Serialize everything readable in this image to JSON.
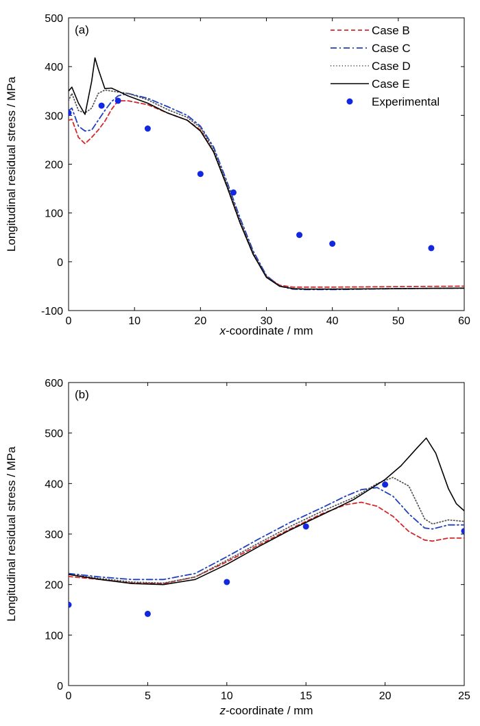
{
  "chart_data": [
    {
      "type": "line",
      "panel_label": "(a)",
      "xlabel_var": "x",
      "xlabel_rest": "-coordinate / mm",
      "ylabel": "Longitudinal residual stress / MPa",
      "xlim": [
        0,
        60
      ],
      "ylim": [
        -100,
        500
      ],
      "xticks": [
        0,
        10,
        20,
        30,
        40,
        50,
        60
      ],
      "yticks": [
        -100,
        0,
        100,
        200,
        300,
        400,
        500
      ],
      "legend": "top-right",
      "series": [
        {
          "name": "Case B",
          "style": "dashed",
          "color": "#d62728",
          "x": [
            0,
            0.5,
            1.5,
            2.5,
            3.5,
            4.5,
            5.5,
            6.5,
            7.5,
            9,
            12,
            15,
            18,
            20,
            22,
            24,
            26,
            28,
            30,
            32,
            34,
            36,
            40,
            50,
            60
          ],
          "y": [
            290,
            292,
            255,
            242,
            255,
            270,
            288,
            312,
            330,
            330,
            322,
            305,
            290,
            270,
            225,
            155,
            80,
            15,
            -30,
            -48,
            -52,
            -52,
            -52,
            -51,
            -50
          ]
        },
        {
          "name": "Case C",
          "style": "dashdot",
          "color": "#1f3fbf",
          "x": [
            0,
            0.5,
            1.5,
            2.5,
            3.5,
            4.5,
            5.5,
            6.5,
            7.5,
            9,
            12,
            15,
            18,
            20,
            22,
            24,
            26,
            28,
            30,
            32,
            34,
            36,
            40,
            50,
            60
          ],
          "y": [
            310,
            315,
            278,
            268,
            270,
            290,
            310,
            328,
            340,
            345,
            335,
            318,
            300,
            278,
            235,
            165,
            90,
            22,
            -28,
            -50,
            -56,
            -57,
            -57,
            -55,
            -54
          ]
        },
        {
          "name": "Case D",
          "style": "dotted",
          "color": "#555555",
          "x": [
            0,
            0.5,
            1.5,
            2.5,
            3.5,
            4.5,
            5.5,
            6.5,
            7.5,
            9,
            12,
            15,
            18,
            20,
            22,
            24,
            26,
            28,
            30,
            32,
            34,
            36,
            40,
            50,
            60
          ],
          "y": [
            330,
            345,
            310,
            305,
            315,
            345,
            352,
            350,
            348,
            345,
            332,
            312,
            296,
            275,
            230,
            160,
            85,
            18,
            -30,
            -50,
            -55,
            -56,
            -56,
            -55,
            -54
          ]
        },
        {
          "name": "Case E",
          "style": "solid",
          "color": "#000000",
          "x": [
            0,
            0.5,
            1.5,
            2.5,
            3.5,
            4,
            4.5,
            5.5,
            6.5,
            7.5,
            9,
            12,
            15,
            18,
            20,
            22,
            24,
            26,
            28,
            30,
            32,
            34,
            36,
            40,
            50,
            60
          ],
          "y": [
            350,
            358,
            325,
            302,
            370,
            418,
            395,
            355,
            356,
            350,
            340,
            325,
            305,
            290,
            268,
            225,
            155,
            80,
            15,
            -32,
            -50,
            -55,
            -56,
            -56,
            -55,
            -54
          ]
        },
        {
          "name": "Experimental",
          "style": "markers",
          "color": "#1228e0",
          "x": [
            0,
            5,
            7.5,
            12,
            20,
            25,
            35,
            40,
            55
          ],
          "y": [
            305,
            320,
            330,
            273,
            180,
            142,
            55,
            37,
            28
          ]
        }
      ]
    },
    {
      "type": "line",
      "panel_label": "(b)",
      "xlabel_var": "z",
      "xlabel_rest": "-coordinate / mm",
      "ylabel": "Longitudinal residual stress / MPa",
      "xlim": [
        0,
        25
      ],
      "ylim": [
        0,
        600
      ],
      "xticks": [
        0,
        5,
        10,
        15,
        20,
        25
      ],
      "yticks": [
        0,
        100,
        200,
        300,
        400,
        500,
        600
      ],
      "series": [
        {
          "name": "Case B",
          "style": "dashed",
          "color": "#d62728",
          "x": [
            0,
            2,
            4,
            6,
            8,
            10,
            12,
            14,
            16,
            17.5,
            18.5,
            19.5,
            20.5,
            21.5,
            22.5,
            23,
            24,
            25
          ],
          "y": [
            216,
            210,
            203,
            202,
            215,
            245,
            278,
            310,
            340,
            358,
            363,
            355,
            335,
            305,
            288,
            286,
            292,
            292
          ]
        },
        {
          "name": "Case C",
          "style": "dashdot",
          "color": "#1f3fbf",
          "x": [
            0,
            2,
            4,
            6,
            8,
            10,
            12,
            14,
            16,
            17.5,
            18.5,
            19.5,
            20.5,
            21.5,
            22.5,
            23,
            24,
            25
          ],
          "y": [
            222,
            215,
            210,
            210,
            222,
            255,
            290,
            323,
            352,
            375,
            388,
            392,
            375,
            340,
            312,
            310,
            318,
            318
          ]
        },
        {
          "name": "Case D",
          "style": "dotted",
          "color": "#555555",
          "x": [
            0,
            2,
            4,
            6,
            8,
            10,
            12,
            14,
            16,
            18,
            19.5,
            20.5,
            21.5,
            22.5,
            23,
            24,
            25
          ],
          "y": [
            220,
            212,
            205,
            203,
            215,
            248,
            282,
            315,
            345,
            372,
            400,
            412,
            395,
            330,
            320,
            328,
            325
          ]
        },
        {
          "name": "Case E",
          "style": "solid",
          "color": "#000000",
          "x": [
            0,
            2,
            4,
            6,
            8,
            10,
            12,
            14,
            16,
            18,
            20,
            21,
            22,
            22.6,
            23.2,
            24,
            24.5,
            25
          ],
          "y": [
            220,
            210,
            202,
            200,
            210,
            240,
            275,
            308,
            338,
            368,
            408,
            435,
            470,
            490,
            460,
            390,
            360,
            346
          ]
        },
        {
          "name": "Experimental",
          "style": "markers",
          "color": "#1228e0",
          "x": [
            0,
            5,
            10,
            15,
            20,
            25
          ],
          "y": [
            160,
            142,
            205,
            315,
            398,
            306
          ]
        }
      ]
    }
  ]
}
